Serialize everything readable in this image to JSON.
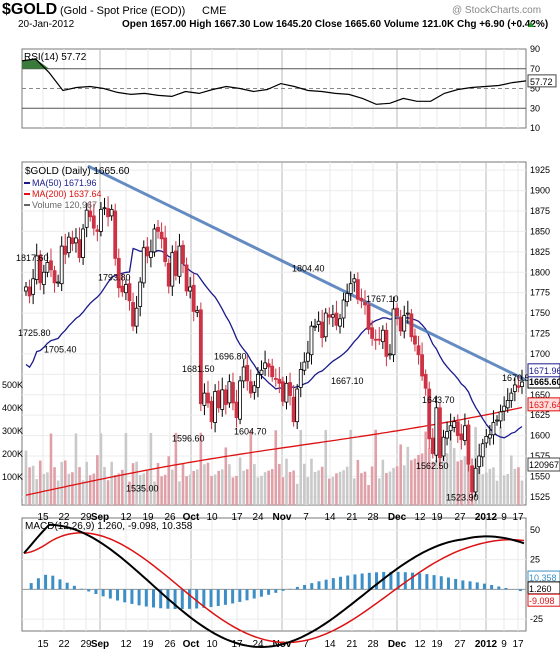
{
  "header": {
    "symbol": "$GOLD",
    "name": "(Gold - Spot Price (EOD))",
    "exchange": "CME",
    "watermark": "@ StockCharts.com",
    "date": "20-Jan-2012",
    "quote": "Open 1657.00  High 1667.30  Low 1645.20  Close 1665.60  Volume 121.0K  Chg +6.90 (+0.42%)",
    "quote_arrow": "▲"
  },
  "colors": {
    "price_up": "#000000",
    "price_down": "#cc3344",
    "ma50": "#1a1a8c",
    "ma200": "#dd1111",
    "trendline": "#4a78b8",
    "volume": "#c9c9c9",
    "volume_down": "#e0a0a8",
    "rsi_fill": "#3a7a3a",
    "macd_line": "#000000",
    "macd_signal": "#dd1111",
    "macd_hist": "#3c8fc6"
  },
  "chart_data": [
    {
      "type": "line",
      "panel": "RSI",
      "title": "RSI(14) 57.72",
      "last_value": 57.72,
      "ylim": [
        10,
        90
      ],
      "yticks": [
        90,
        70,
        50,
        30,
        10
      ],
      "reference_lines": [
        70,
        50,
        30
      ],
      "approx_values": [
        78,
        80,
        66,
        48,
        51,
        52,
        50,
        46,
        44,
        45,
        43,
        42,
        47,
        45,
        49,
        52,
        50,
        47,
        49,
        55,
        52,
        48,
        47,
        45,
        44,
        40,
        34,
        35,
        40,
        37,
        37,
        45,
        49,
        51,
        52,
        53,
        56,
        57.72
      ]
    },
    {
      "type": "candlestick",
      "panel": "Price",
      "title": "$GOLD (Daily) 1665.60",
      "ylim": [
        1515,
        1935
      ],
      "yticks": [
        1925,
        1900,
        1875,
        1850,
        1825,
        1800,
        1775,
        1750,
        1725,
        1700,
        1675,
        1650,
        1625,
        1600,
        1575,
        1550,
        1525
      ],
      "x_ticks": [
        "15",
        "22",
        "29",
        "Sep",
        "12",
        "19",
        "26",
        "Oct",
        "10",
        "17",
        "24",
        "Nov",
        "7",
        "14",
        "21",
        "28",
        "Dec",
        "12",
        "19",
        "27",
        "2012",
        "9",
        "17"
      ],
      "legend": [
        {
          "name": "MA(50)",
          "value": 1671.96
        },
        {
          "name": "MA(200)",
          "value": 1637.64
        },
        {
          "name": "Volume",
          "value": "120,967"
        }
      ],
      "annotations": [
        1817.6,
        1725.8,
        1705.4,
        1793.8,
        1535.0,
        1596.6,
        1681.5,
        1696.8,
        1604.7,
        1804.4,
        1667.1,
        1767.1,
        1643.7,
        1562.5,
        1523.9,
        1670.5
      ],
      "right_labels": [
        "1665.60",
        "1671.96",
        "1637.64"
      ],
      "close_series": [
        1782,
        1771,
        1792,
        1820,
        1787,
        1800,
        1812,
        1803,
        1787,
        1788,
        1832,
        1822,
        1843,
        1835,
        1842,
        1818,
        1853,
        1876,
        1868,
        1854,
        1850,
        1877,
        1879,
        1868,
        1877,
        1817,
        1781,
        1776,
        1785,
        1765,
        1734,
        1756,
        1788,
        1830,
        1820,
        1825,
        1853,
        1850,
        1841,
        1813,
        1783,
        1824,
        1796,
        1832,
        1811,
        1777,
        1782,
        1752,
        1753,
        1639,
        1652,
        1640,
        1617,
        1654,
        1634,
        1656,
        1638,
        1666,
        1640,
        1622,
        1667,
        1684,
        1667,
        1652,
        1661,
        1675,
        1680,
        1689,
        1684,
        1672,
        1669,
        1664,
        1642,
        1664,
        1649,
        1617,
        1657,
        1681,
        1690,
        1701,
        1734,
        1734,
        1740,
        1720,
        1750,
        1745,
        1748,
        1735,
        1743,
        1766,
        1774,
        1786,
        1792,
        1767,
        1765,
        1760,
        1730,
        1719,
        1717,
        1717,
        1729,
        1697,
        1700,
        1755,
        1747,
        1728,
        1747,
        1750,
        1721,
        1712,
        1699,
        1673,
        1658,
        1596,
        1578,
        1634,
        1573,
        1598,
        1605,
        1612,
        1617,
        1600,
        1595,
        1612,
        1565,
        1531,
        1560,
        1575,
        1590,
        1599,
        1601,
        1616,
        1619,
        1629,
        1636,
        1643,
        1652,
        1662,
        1659,
        1665.6
      ],
      "volume_axis": [
        "500K",
        "400K",
        "300K",
        "200K",
        "100K"
      ],
      "volume_last": "120967"
    },
    {
      "type": "line",
      "panel": "MACD",
      "title": "MACD(12,26,9) 1.260, -9.098, 10.358",
      "series": [
        {
          "name": "MACD",
          "last": 1.26
        },
        {
          "name": "Signal",
          "last": -9.098
        },
        {
          "name": "Histogram",
          "last": 10.358
        }
      ],
      "ylim": [
        -35,
        60
      ],
      "yticks": [
        50,
        25,
        0,
        -25
      ],
      "right_labels": [
        "10.358",
        "1.260",
        "-9.098"
      ],
      "x_ticks": [
        "15",
        "22",
        "29",
        "Sep",
        "12",
        "19",
        "26",
        "Oct",
        "10",
        "17",
        "24",
        "Nov",
        "7",
        "14",
        "21",
        "28",
        "Dec",
        "12",
        "19",
        "27",
        "2012",
        "9",
        "17"
      ]
    }
  ]
}
